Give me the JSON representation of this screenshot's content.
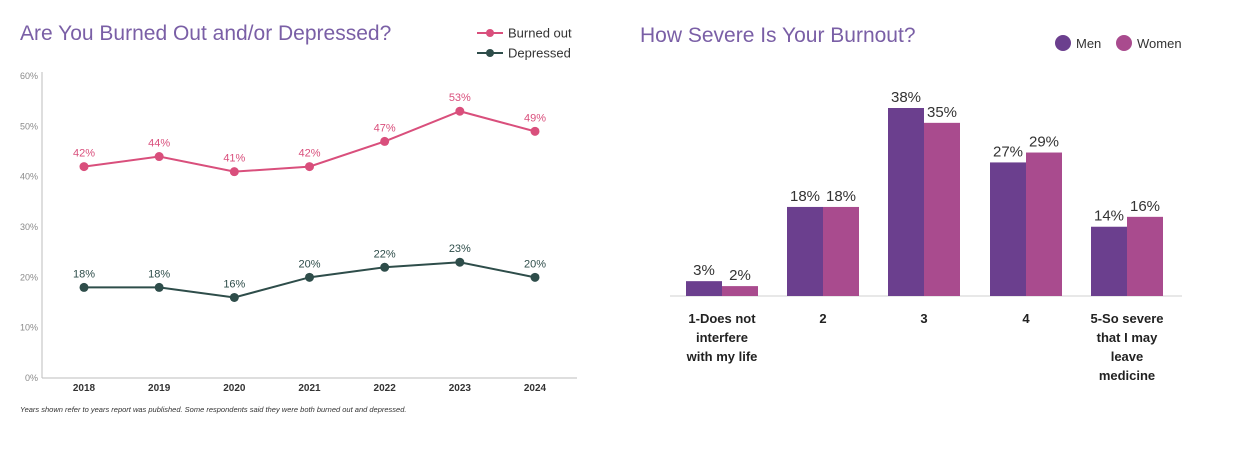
{
  "chart_data": [
    {
      "type": "line",
      "title": "Are You Burned Out and/or Depressed?",
      "x": [
        "2018",
        "2019",
        "2020",
        "2021",
        "2022",
        "2023",
        "2024"
      ],
      "ylim": [
        0,
        60
      ],
      "yticks": [
        "0%",
        "10%",
        "20%",
        "30%",
        "40%",
        "50%",
        "60%"
      ],
      "legend_position": "top-right",
      "grid": false,
      "series": [
        {
          "name": "Burned out",
          "color": "#d94f7c",
          "values": [
            42,
            44,
            41,
            42,
            47,
            53,
            49
          ],
          "labels": [
            "42%",
            "44%",
            "41%",
            "42%",
            "47%",
            "53%",
            "49%"
          ]
        },
        {
          "name": "Depressed",
          "color": "#2e4d4a",
          "values": [
            18,
            18,
            16,
            20,
            22,
            23,
            20
          ],
          "labels": [
            "18%",
            "18%",
            "16%",
            "20%",
            "22%",
            "23%",
            "20%"
          ]
        }
      ],
      "footnote": "Years shown refer to years report was published. Some respondents said they were both burned out and depressed."
    },
    {
      "type": "bar",
      "title": "How Severe Is Your Burnout?",
      "categories": [
        [
          "1-Does not",
          "interfere",
          "with my life"
        ],
        [
          "2"
        ],
        [
          "3"
        ],
        [
          "4"
        ],
        [
          "5-So severe",
          "that I may",
          "leave",
          "medicine"
        ]
      ],
      "legend_position": "top-right",
      "grid": false,
      "series": [
        {
          "name": "Men",
          "color": "#6b3f8e",
          "values": [
            3,
            18,
            38,
            27,
            14
          ],
          "labels": [
            "3%",
            "18%",
            "38%",
            "27%",
            "14%"
          ]
        },
        {
          "name": "Women",
          "color": "#a94b8e",
          "values": [
            2,
            18,
            35,
            29,
            16
          ],
          "labels": [
            "2%",
            "18%",
            "35%",
            "29%",
            "16%"
          ]
        }
      ]
    }
  ]
}
